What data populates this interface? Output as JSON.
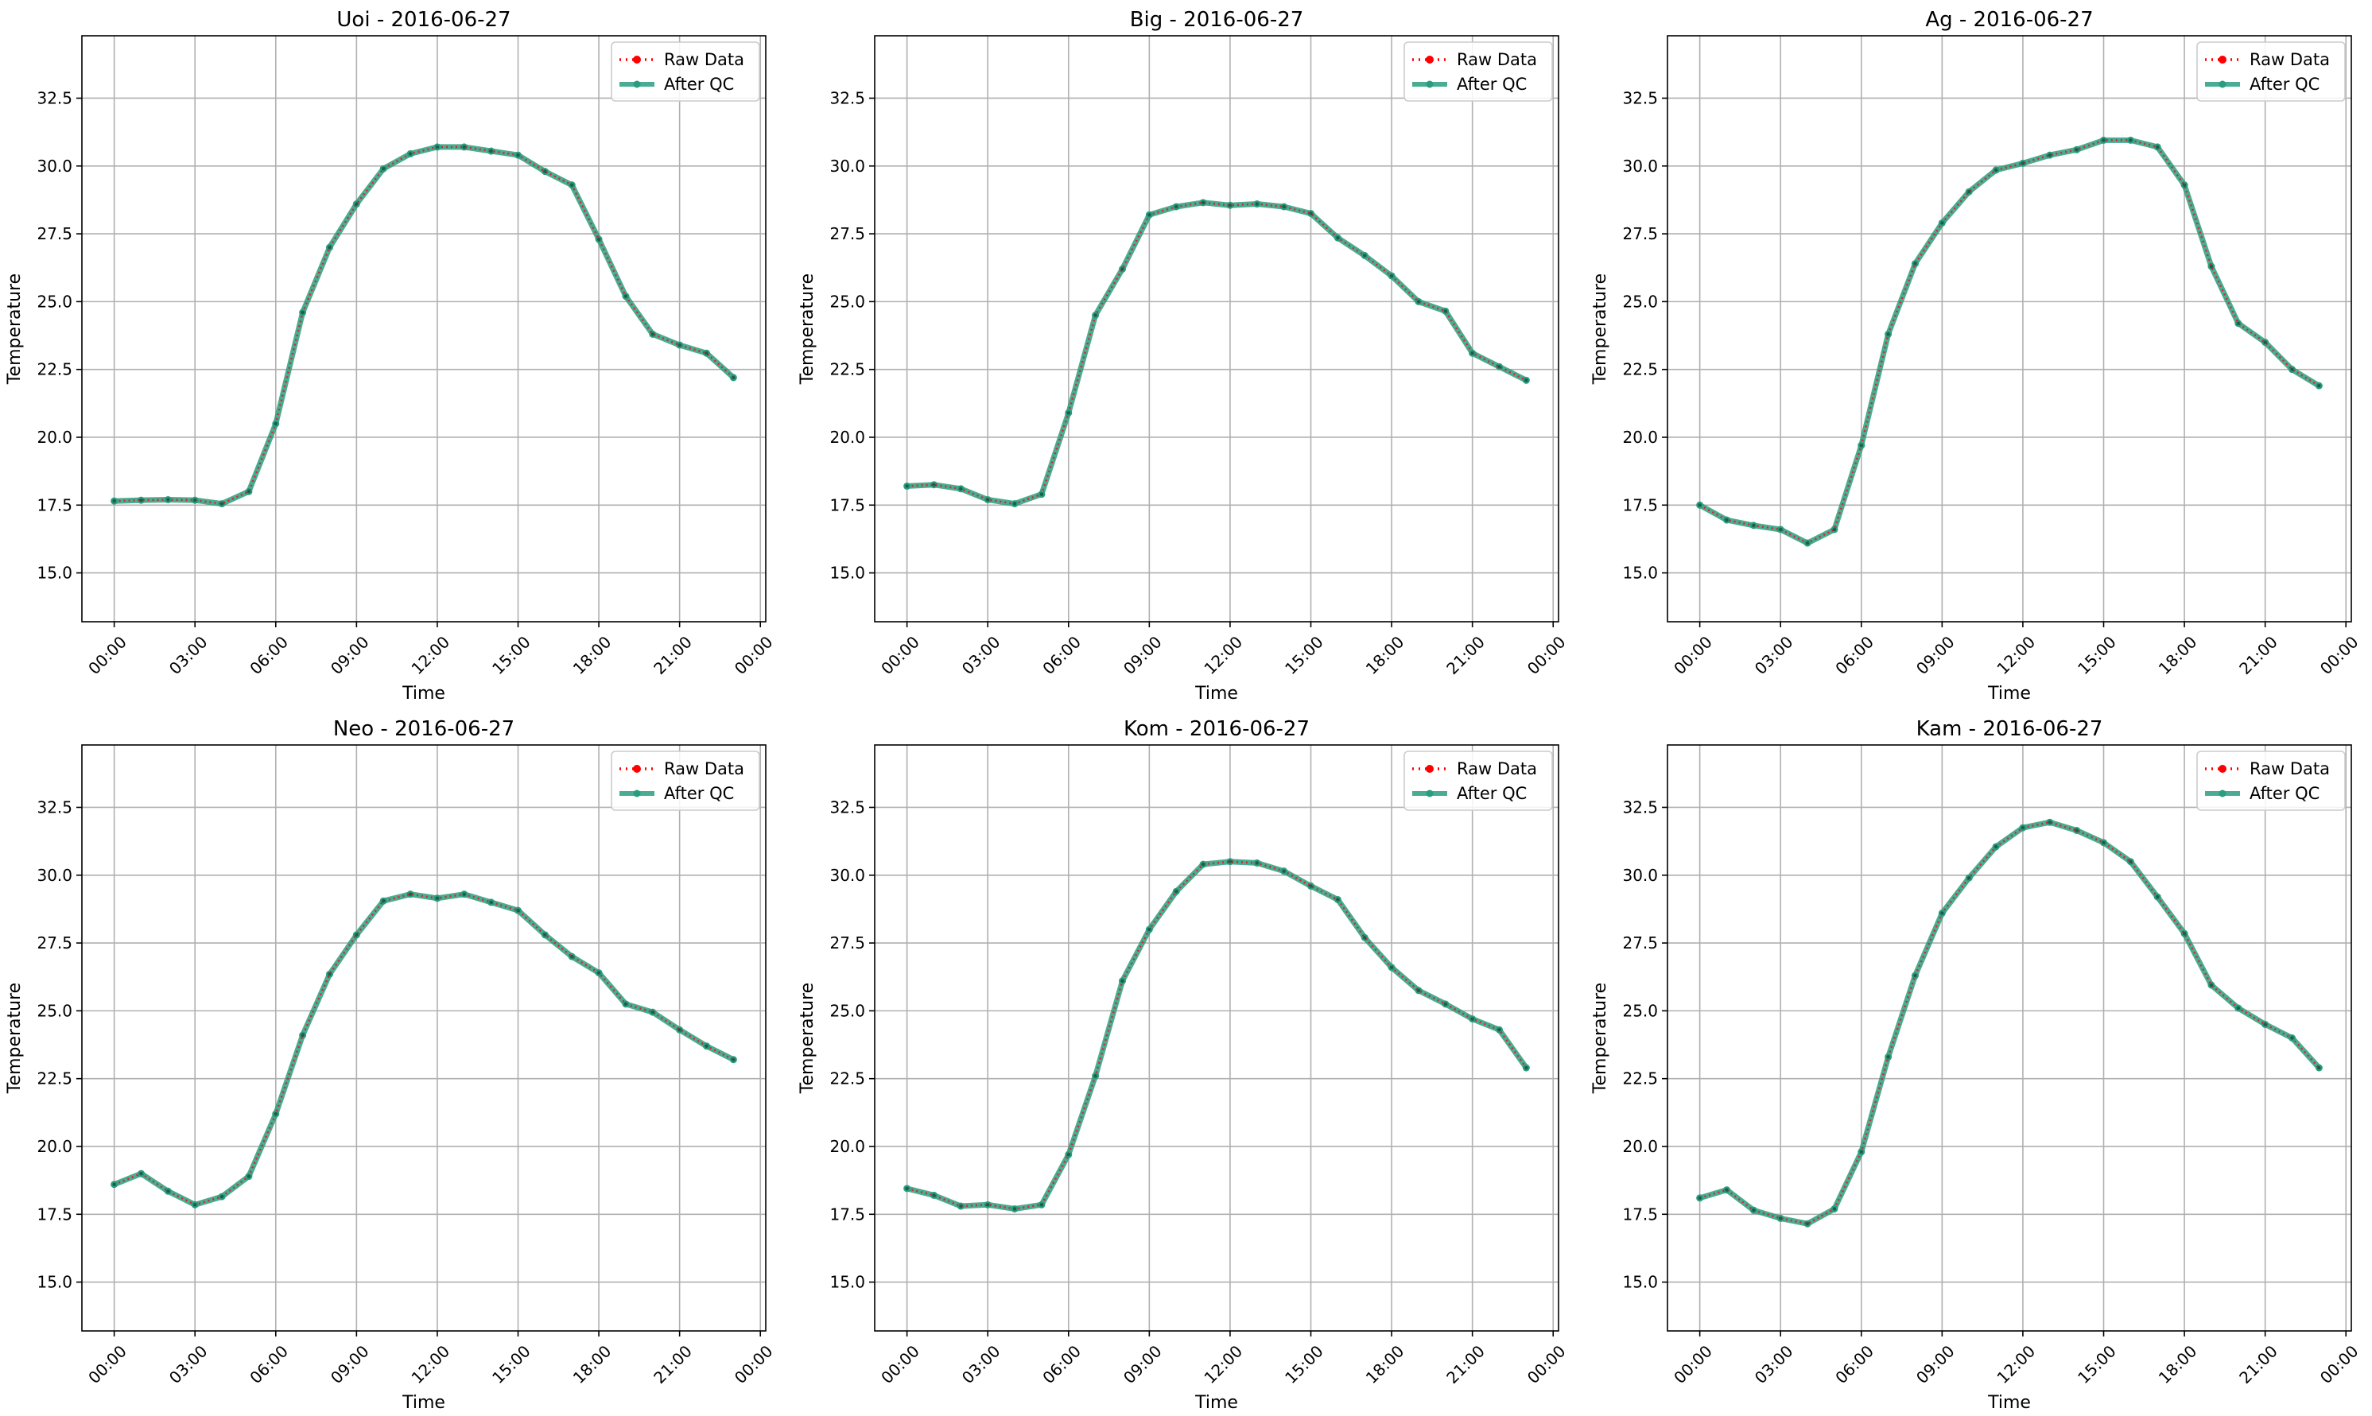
{
  "chart_data": [
    {
      "type": "line",
      "title": "Uoi - 2016-06-27",
      "xlabel": "Time",
      "ylabel": "Temperature",
      "ylim": [
        13.2,
        34.8
      ],
      "yticks": [
        "15.0",
        "17.5",
        "20.0",
        "22.5",
        "25.0",
        "27.5",
        "30.0",
        "32.5"
      ],
      "xlim_hours": [
        -1.2,
        24.2
      ],
      "xticks": [
        "00:00",
        "03:00",
        "06:00",
        "09:00",
        "12:00",
        "15:00",
        "18:00",
        "21:00",
        "00:00"
      ],
      "grid": true,
      "legend_position": "top-right",
      "x_hours": [
        0,
        1,
        2,
        3,
        4,
        5,
        6,
        7,
        8,
        9,
        10,
        11,
        12,
        13,
        14,
        15,
        16,
        17,
        18,
        19,
        20,
        21,
        22,
        23
      ],
      "series": [
        {
          "name": "Raw Data",
          "color": "#ff0000",
          "style": "dotted",
          "values": [
            17.65,
            17.68,
            17.7,
            17.68,
            17.55,
            18.0,
            20.5,
            24.6,
            27.0,
            28.6,
            29.9,
            30.45,
            30.7,
            30.7,
            30.55,
            30.4,
            29.8,
            29.3,
            27.3,
            25.2,
            23.8,
            23.4,
            23.1,
            22.2
          ]
        },
        {
          "name": "After QC",
          "color": "#2a9d7f",
          "style": "solid",
          "values": [
            17.65,
            17.68,
            17.7,
            17.68,
            17.55,
            18.0,
            20.5,
            24.6,
            27.0,
            28.6,
            29.9,
            30.45,
            30.7,
            30.7,
            30.55,
            30.4,
            29.8,
            29.3,
            27.3,
            25.2,
            23.8,
            23.4,
            23.1,
            22.2
          ]
        }
      ]
    },
    {
      "type": "line",
      "title": "Big - 2016-06-27",
      "xlabel": "Time",
      "ylabel": "Temperature",
      "ylim": [
        13.2,
        34.8
      ],
      "yticks": [
        "15.0",
        "17.5",
        "20.0",
        "22.5",
        "25.0",
        "27.5",
        "30.0",
        "32.5"
      ],
      "xlim_hours": [
        -1.2,
        24.2
      ],
      "xticks": [
        "00:00",
        "03:00",
        "06:00",
        "09:00",
        "12:00",
        "15:00",
        "18:00",
        "21:00",
        "00:00"
      ],
      "grid": true,
      "legend_position": "top-right",
      "x_hours": [
        0,
        1,
        2,
        3,
        4,
        5,
        6,
        7,
        8,
        9,
        10,
        11,
        12,
        13,
        14,
        15,
        16,
        17,
        18,
        19,
        20,
        21,
        22,
        23
      ],
      "series": [
        {
          "name": "Raw Data",
          "color": "#ff0000",
          "style": "dotted",
          "values": [
            18.2,
            18.25,
            18.1,
            17.7,
            17.55,
            17.9,
            20.9,
            24.5,
            26.2,
            28.2,
            28.5,
            28.65,
            28.55,
            28.6,
            28.5,
            28.25,
            27.35,
            26.7,
            25.95,
            25.0,
            24.65,
            23.1,
            22.6,
            22.1
          ]
        },
        {
          "name": "After QC",
          "color": "#2a9d7f",
          "style": "solid",
          "values": [
            18.2,
            18.25,
            18.1,
            17.7,
            17.55,
            17.9,
            20.9,
            24.5,
            26.2,
            28.2,
            28.5,
            28.65,
            28.55,
            28.6,
            28.5,
            28.25,
            27.35,
            26.7,
            25.95,
            25.0,
            24.65,
            23.1,
            22.6,
            22.1
          ]
        }
      ]
    },
    {
      "type": "line",
      "title": "Ag - 2016-06-27",
      "xlabel": "Time",
      "ylabel": "Temperature",
      "ylim": [
        13.2,
        34.8
      ],
      "yticks": [
        "15.0",
        "17.5",
        "20.0",
        "22.5",
        "25.0",
        "27.5",
        "30.0",
        "32.5"
      ],
      "xlim_hours": [
        -1.2,
        24.2
      ],
      "xticks": [
        "00:00",
        "03:00",
        "06:00",
        "09:00",
        "12:00",
        "15:00",
        "18:00",
        "21:00",
        "00:00"
      ],
      "grid": true,
      "legend_position": "top-right",
      "x_hours": [
        0,
        1,
        2,
        3,
        4,
        5,
        6,
        7,
        8,
        9,
        10,
        11,
        12,
        13,
        14,
        15,
        16,
        17,
        18,
        19,
        20,
        21,
        22,
        23
      ],
      "series": [
        {
          "name": "Raw Data",
          "color": "#ff0000",
          "style": "dotted",
          "values": [
            17.5,
            16.95,
            16.75,
            16.6,
            16.1,
            16.6,
            19.7,
            23.8,
            26.4,
            27.9,
            29.05,
            29.85,
            30.1,
            30.4,
            30.6,
            30.95,
            30.95,
            30.7,
            29.3,
            26.3,
            24.2,
            23.5,
            22.5,
            21.9
          ]
        },
        {
          "name": "After QC",
          "color": "#2a9d7f",
          "style": "solid",
          "values": [
            17.5,
            16.95,
            16.75,
            16.6,
            16.1,
            16.6,
            19.7,
            23.8,
            26.4,
            27.9,
            29.05,
            29.85,
            30.1,
            30.4,
            30.6,
            30.95,
            30.95,
            30.7,
            29.3,
            26.3,
            24.2,
            23.5,
            22.5,
            21.9
          ]
        }
      ]
    },
    {
      "type": "line",
      "title": "Neo - 2016-06-27",
      "xlabel": "Time",
      "ylabel": "Temperature",
      "ylim": [
        13.2,
        34.8
      ],
      "yticks": [
        "15.0",
        "17.5",
        "20.0",
        "22.5",
        "25.0",
        "27.5",
        "30.0",
        "32.5"
      ],
      "xlim_hours": [
        -1.2,
        24.2
      ],
      "xticks": [
        "00:00",
        "03:00",
        "06:00",
        "09:00",
        "12:00",
        "15:00",
        "18:00",
        "21:00",
        "00:00"
      ],
      "grid": true,
      "legend_position": "top-right",
      "x_hours": [
        0,
        1,
        2,
        3,
        4,
        5,
        6,
        7,
        8,
        9,
        10,
        11,
        12,
        13,
        14,
        15,
        16,
        17,
        18,
        19,
        20,
        21,
        22,
        23
      ],
      "series": [
        {
          "name": "Raw Data",
          "color": "#ff0000",
          "style": "dotted",
          "values": [
            18.6,
            19.0,
            18.35,
            17.85,
            18.15,
            18.9,
            21.2,
            24.1,
            26.35,
            27.8,
            29.05,
            29.3,
            29.15,
            29.3,
            29.0,
            28.7,
            27.8,
            27.0,
            26.4,
            25.25,
            24.95,
            24.3,
            23.7,
            23.2
          ]
        },
        {
          "name": "After QC",
          "color": "#2a9d7f",
          "style": "solid",
          "values": [
            18.6,
            19.0,
            18.35,
            17.85,
            18.15,
            18.9,
            21.2,
            24.1,
            26.35,
            27.8,
            29.05,
            29.3,
            29.15,
            29.3,
            29.0,
            28.7,
            27.8,
            27.0,
            26.4,
            25.25,
            24.95,
            24.3,
            23.7,
            23.2
          ]
        }
      ]
    },
    {
      "type": "line",
      "title": "Kom - 2016-06-27",
      "xlabel": "Time",
      "ylabel": "Temperature",
      "ylim": [
        13.2,
        34.8
      ],
      "yticks": [
        "15.0",
        "17.5",
        "20.0",
        "22.5",
        "25.0",
        "27.5",
        "30.0",
        "32.5"
      ],
      "xlim_hours": [
        -1.2,
        24.2
      ],
      "xticks": [
        "00:00",
        "03:00",
        "06:00",
        "09:00",
        "12:00",
        "15:00",
        "18:00",
        "21:00",
        "00:00"
      ],
      "grid": true,
      "legend_position": "top-right",
      "x_hours": [
        0,
        1,
        2,
        3,
        4,
        5,
        6,
        7,
        8,
        9,
        10,
        11,
        12,
        13,
        14,
        15,
        16,
        17,
        18,
        19,
        20,
        21,
        22,
        23
      ],
      "series": [
        {
          "name": "Raw Data",
          "color": "#ff0000",
          "style": "dotted",
          "values": [
            18.45,
            18.2,
            17.8,
            17.85,
            17.7,
            17.85,
            19.7,
            22.6,
            26.1,
            28.0,
            29.4,
            30.4,
            30.5,
            30.45,
            30.15,
            29.6,
            29.1,
            27.7,
            26.6,
            25.75,
            25.25,
            24.7,
            24.3,
            22.9
          ]
        },
        {
          "name": "After QC",
          "color": "#2a9d7f",
          "style": "solid",
          "values": [
            18.45,
            18.2,
            17.8,
            17.85,
            17.7,
            17.85,
            19.7,
            22.6,
            26.1,
            28.0,
            29.4,
            30.4,
            30.5,
            30.45,
            30.15,
            29.6,
            29.1,
            27.7,
            26.6,
            25.75,
            25.25,
            24.7,
            24.3,
            22.9
          ]
        }
      ]
    },
    {
      "type": "line",
      "title": "Kam - 2016-06-27",
      "xlabel": "Time",
      "ylabel": "Temperature",
      "ylim": [
        13.2,
        34.8
      ],
      "yticks": [
        "15.0",
        "17.5",
        "20.0",
        "22.5",
        "25.0",
        "27.5",
        "30.0",
        "32.5"
      ],
      "xlim_hours": [
        -1.2,
        24.2
      ],
      "xticks": [
        "00:00",
        "03:00",
        "06:00",
        "09:00",
        "12:00",
        "15:00",
        "18:00",
        "21:00",
        "00:00"
      ],
      "grid": true,
      "legend_position": "top-right",
      "x_hours": [
        0,
        1,
        2,
        3,
        4,
        5,
        6,
        7,
        8,
        9,
        10,
        11,
        12,
        13,
        14,
        15,
        16,
        17,
        18,
        19,
        20,
        21,
        22,
        23
      ],
      "series": [
        {
          "name": "Raw Data",
          "color": "#ff0000",
          "style": "dotted",
          "values": [
            18.1,
            18.4,
            17.65,
            17.35,
            17.15,
            17.7,
            19.8,
            23.3,
            26.3,
            28.6,
            29.9,
            31.05,
            31.75,
            31.95,
            31.65,
            31.2,
            30.5,
            29.2,
            27.85,
            25.95,
            25.1,
            24.5,
            24.0,
            22.9
          ]
        },
        {
          "name": "After QC",
          "color": "#2a9d7f",
          "style": "solid",
          "values": [
            18.1,
            18.4,
            17.65,
            17.35,
            17.15,
            17.7,
            19.8,
            23.3,
            26.3,
            28.6,
            29.9,
            31.05,
            31.75,
            31.95,
            31.65,
            31.2,
            30.5,
            29.2,
            27.85,
            25.95,
            25.1,
            24.5,
            24.0,
            22.9
          ]
        }
      ]
    }
  ]
}
